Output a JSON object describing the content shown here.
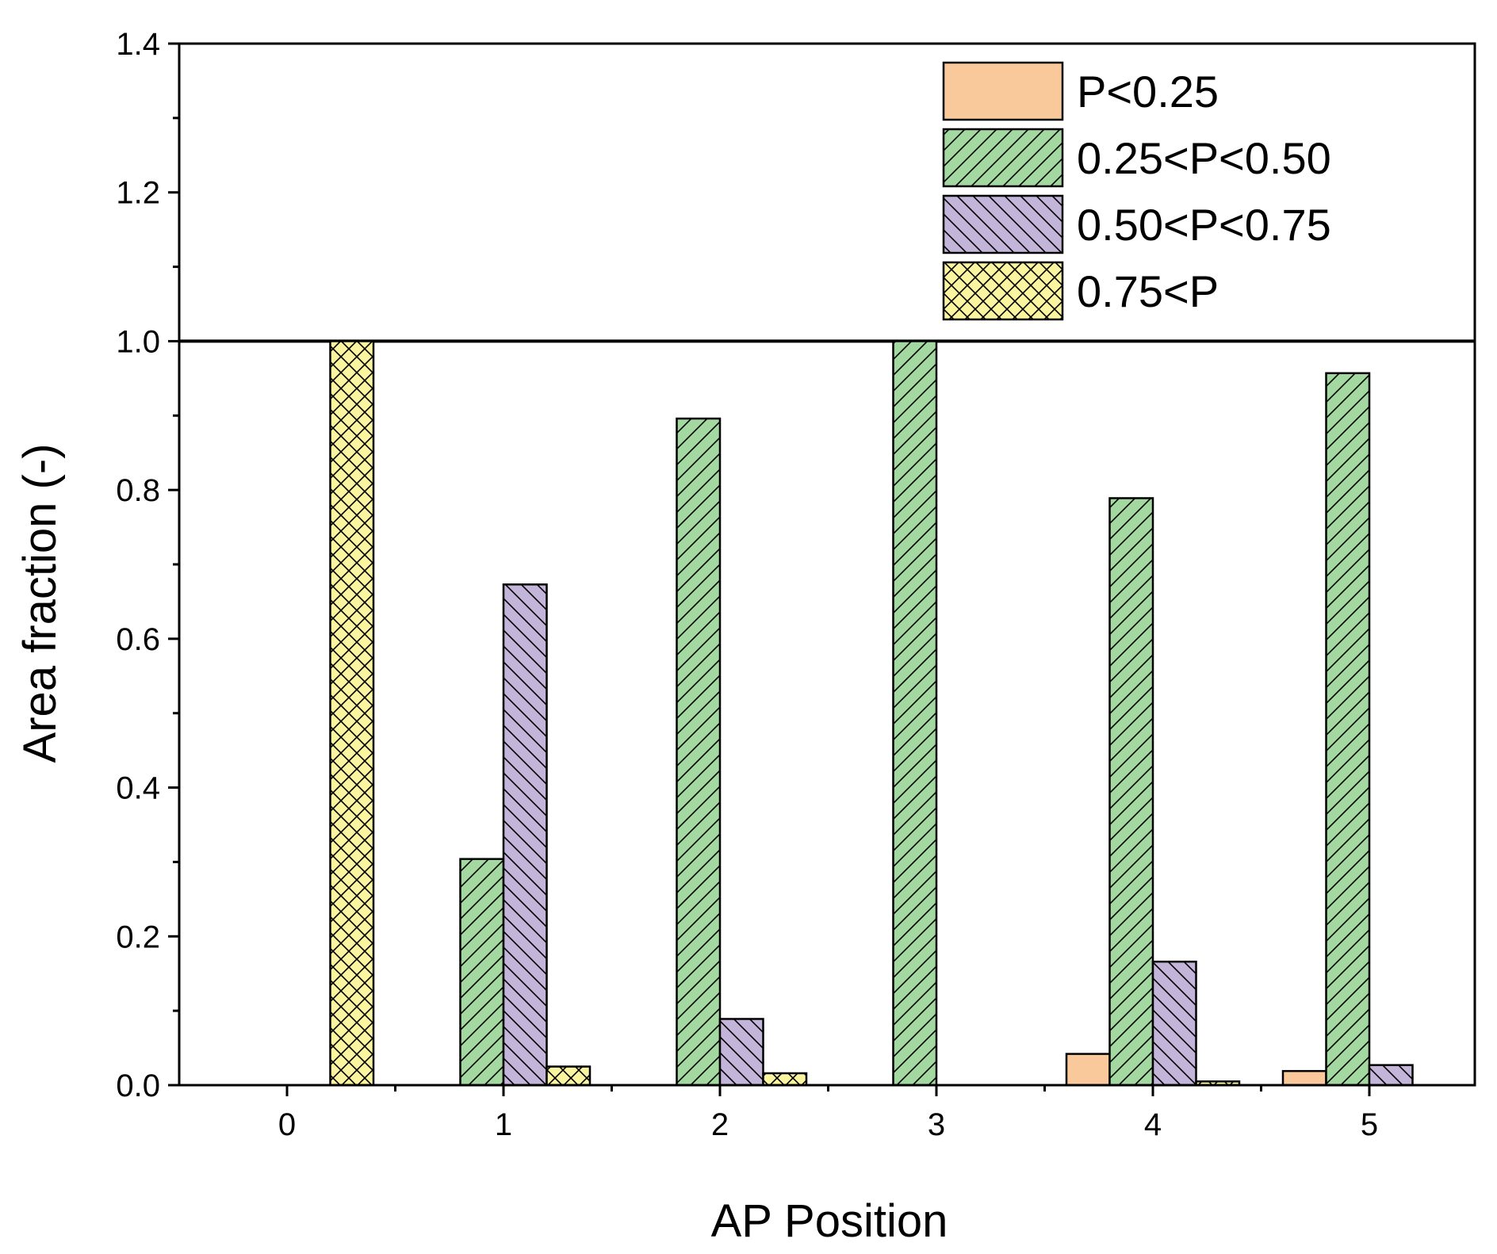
{
  "chart_data": {
    "type": "bar",
    "xlabel": "AP Position",
    "ylabel": "Area fraction (-)",
    "categories": [
      "0",
      "1",
      "2",
      "3",
      "4",
      "5"
    ],
    "ylim": [
      0,
      1.4
    ],
    "yticks": [
      0.0,
      0.2,
      0.4,
      0.6,
      0.8,
      1.0,
      1.2,
      1.4
    ],
    "ytick_labels": [
      "0.0",
      "0.2",
      "0.4",
      "0.6",
      "0.8",
      "1.0",
      "1.2",
      "1.4"
    ],
    "reference_line": 1.0,
    "legend_position": "top-right",
    "series": [
      {
        "name": "P<0.25",
        "key": "p1",
        "color": "#f9c89b",
        "pattern": "none",
        "values": [
          0,
          0,
          0,
          0,
          0.042,
          0.019
        ]
      },
      {
        "name": "0.25<P<0.50",
        "key": "p2",
        "color": "#a3d9a1",
        "pattern": "forward-diagonal",
        "values": [
          0,
          0.304,
          0.896,
          1.0,
          0.789,
          0.957
        ]
      },
      {
        "name": "0.50<P<0.75",
        "key": "p3",
        "color": "#c3b4d9",
        "pattern": "back-diagonal",
        "values": [
          0,
          0.673,
          0.089,
          0,
          0.166,
          0.027
        ]
      },
      {
        "name": "0.75<P",
        "key": "p4",
        "color": "#fbf5a0",
        "pattern": "crosshatch",
        "values": [
          1.0,
          0.025,
          0.016,
          0,
          0.005,
          0
        ]
      }
    ]
  }
}
